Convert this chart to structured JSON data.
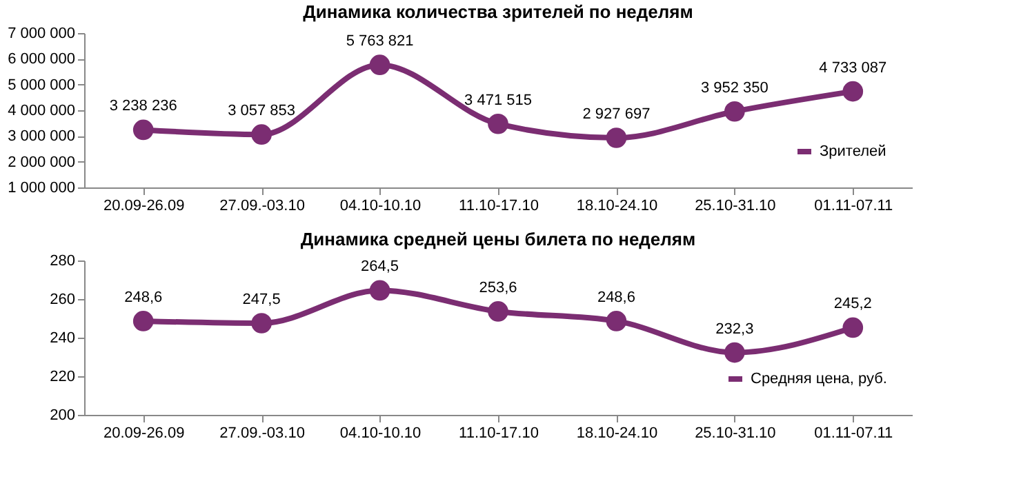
{
  "chart_data": [
    {
      "type": "line",
      "title": "Динамика количества зрителей по неделям",
      "categories": [
        "20.09-26.09",
        "27.09.-03.10",
        "04.10-10.10",
        "11.10-17.10",
        "18.10-24.10",
        "25.10-31.10",
        "01.11-07.11"
      ],
      "series": [
        {
          "name": "Зрителей",
          "color": "#7b2d72",
          "values": [
            3238236,
            3057853,
            5763821,
            3471515,
            2927697,
            3952350,
            4733087
          ],
          "value_labels": [
            "3 238 236",
            "3 057 853",
            "5 763 821",
            "3 471 515",
            "2 927 697",
            "3 952 350",
            "4 733 087"
          ]
        }
      ],
      "ylim": [
        1000000,
        7000000
      ],
      "yticks": [
        {
          "value": 1000000,
          "label": "1 000 000"
        },
        {
          "value": 2000000,
          "label": "2 000 000"
        },
        {
          "value": 3000000,
          "label": "3 000 000"
        },
        {
          "value": 4000000,
          "label": "4 000 000"
        },
        {
          "value": 5000000,
          "label": "5 000 000"
        },
        {
          "value": 6000000,
          "label": "6 000 000"
        },
        {
          "value": 7000000,
          "label": "7 000 000"
        }
      ],
      "marker": "circle",
      "legend": "bottom right",
      "grid": false
    },
    {
      "type": "line",
      "title": "Динамика средней цены билета по неделям",
      "categories": [
        "20.09-26.09",
        "27.09.-03.10",
        "04.10-10.10",
        "11.10-17.10",
        "18.10-24.10",
        "25.10-31.10",
        "01.11-07.11"
      ],
      "series": [
        {
          "name": "Средняя цена, руб.",
          "color": "#7b2d72",
          "values": [
            248.6,
            247.5,
            264.5,
            253.6,
            248.6,
            232.3,
            245.2
          ],
          "value_labels": [
            "248,6",
            "247,5",
            "264,5",
            "253,6",
            "248,6",
            "232,3",
            "245,2"
          ]
        }
      ],
      "ylim": [
        200,
        280
      ],
      "yticks": [
        200,
        220,
        240,
        260,
        280
      ],
      "marker": "circle",
      "legend": "bottom right",
      "grid": false
    }
  ]
}
